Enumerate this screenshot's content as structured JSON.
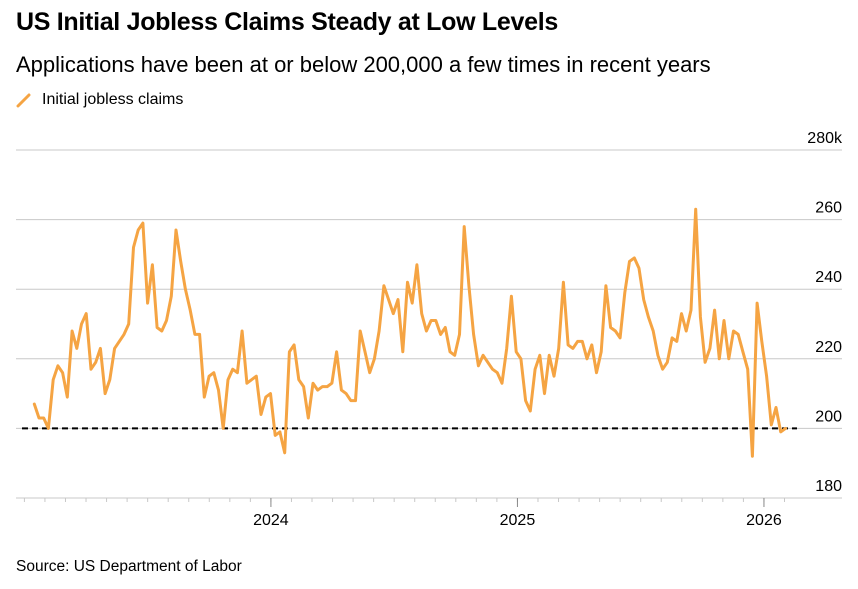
{
  "chart_data": {
    "type": "line",
    "title": "US Initial Jobless Claims Steady at Low Levels",
    "subtitle": "Applications have been at or below 200,000 a few times in recent years",
    "source": "Source: US Department of Labor",
    "legend": [
      {
        "label": "Initial jobless claims",
        "color": "#f5a443"
      }
    ],
    "ylim": [
      180,
      280
    ],
    "y_ticks": [
      {
        "value": 280,
        "label": "280k"
      },
      {
        "value": 260,
        "label": "260"
      },
      {
        "value": 240,
        "label": "240"
      },
      {
        "value": 220,
        "label": "220"
      },
      {
        "value": 200,
        "label": "200"
      },
      {
        "value": 180,
        "label": "180"
      }
    ],
    "x_range": [
      2022.97,
      2026.13
    ],
    "x_ticks": [
      {
        "value": 2024.0,
        "label": "2024"
      },
      {
        "value": 2025.0,
        "label": "2025"
      },
      {
        "value": 2026.0,
        "label": "2026"
      }
    ],
    "minor_ticks_per_year": 12,
    "reference_line": {
      "value": 200,
      "style": "dashed",
      "color": "#000000"
    },
    "series": [
      {
        "name": "Initial jobless claims",
        "color": "#f5a443",
        "start": 2023.04,
        "step_weeks": 1,
        "values": [
          207,
          203,
          203,
          200,
          214,
          218,
          216,
          209,
          228,
          223,
          230,
          233,
          217,
          219,
          223,
          210,
          214,
          223,
          225,
          227,
          230,
          252,
          257,
          259,
          236,
          247,
          229,
          228,
          231,
          238,
          257,
          248,
          240,
          234,
          227,
          227,
          209,
          215,
          216,
          211,
          200,
          214,
          217,
          216,
          228,
          213,
          214,
          215,
          204,
          209,
          210,
          198,
          199,
          193,
          222,
          224,
          214,
          212,
          203,
          213,
          211,
          212,
          212,
          213,
          222,
          211,
          210,
          208,
          208,
          228,
          222,
          216,
          220,
          228,
          241,
          237,
          233,
          237,
          222,
          242,
          236,
          247,
          233,
          228,
          231,
          231,
          227,
          229,
          222,
          221,
          227,
          258,
          241,
          227,
          218,
          221,
          219,
          217,
          216,
          213,
          223,
          238,
          222,
          220,
          208,
          205,
          217,
          221,
          210,
          221,
          215,
          223,
          242,
          224,
          223,
          225,
          225,
          220,
          224,
          216,
          222,
          241,
          229,
          228,
          226,
          239,
          248,
          249,
          246,
          237,
          232,
          228,
          221,
          217,
          219,
          226,
          225,
          233,
          228,
          234,
          263,
          232,
          219,
          223,
          234,
          220,
          231,
          220,
          228,
          227,
          222,
          217,
          192,
          236,
          225,
          215,
          201,
          206,
          199,
          200
        ]
      }
    ]
  }
}
